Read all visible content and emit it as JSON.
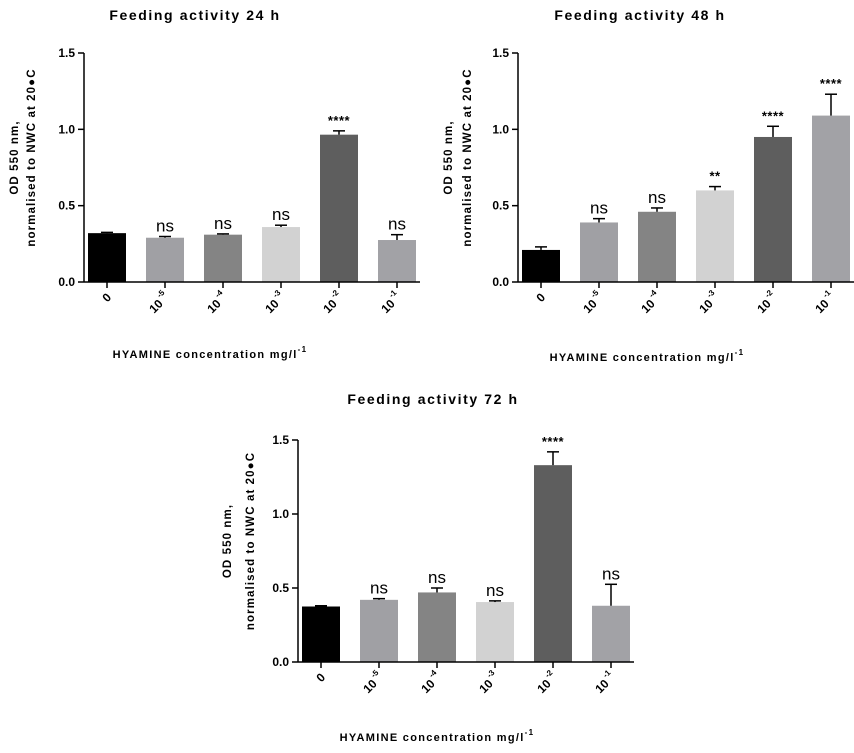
{
  "colors": {
    "bars": [
      "#000000",
      "#a0a0a4",
      "#848484",
      "#d2d2d2",
      "#5e5e5e",
      "#a2a2a6"
    ],
    "axis": "#000000"
  },
  "chart_data": [
    {
      "type": "bar",
      "title": "Feeding activity 24 h",
      "ylabel_lines": [
        "OD 550 nm,",
        "normalised to NWC at 20●C"
      ],
      "xlabel": "HYAMINE concentration mg/l",
      "xlabel_sup": "-1",
      "categories": [
        {
          "base": "0",
          "exp": ""
        },
        {
          "base": "10",
          "exp": "-5"
        },
        {
          "base": "10",
          "exp": "-4"
        },
        {
          "base": "10",
          "exp": "-3"
        },
        {
          "base": "10",
          "exp": "-2"
        },
        {
          "base": "10",
          "exp": "-1"
        }
      ],
      "values": [
        0.32,
        0.29,
        0.31,
        0.36,
        0.965,
        0.275
      ],
      "errors": [
        0.005,
        0.008,
        0.005,
        0.012,
        0.025,
        0.035
      ],
      "significance": [
        "",
        "ns",
        "ns",
        "ns",
        "****",
        "ns"
      ],
      "ylim": [
        0,
        1.5
      ],
      "yticks": [
        "0.0",
        "0.5",
        "1.0",
        "1.5"
      ]
    },
    {
      "type": "bar",
      "title": "Feeding activity 48 h",
      "ylabel_lines": [
        "OD 550 nm,",
        "normalised to NWC at 20●C"
      ],
      "xlabel": "HYAMINE concentration mg/l",
      "xlabel_sup": "-1",
      "categories": [
        {
          "base": "0",
          "exp": ""
        },
        {
          "base": "10",
          "exp": "-5"
        },
        {
          "base": "10",
          "exp": "-4"
        },
        {
          "base": "10",
          "exp": "-3"
        },
        {
          "base": "10",
          "exp": "-2"
        },
        {
          "base": "10",
          "exp": "-1"
        }
      ],
      "values": [
        0.21,
        0.39,
        0.46,
        0.6,
        0.95,
        1.09
      ],
      "errors": [
        0.02,
        0.025,
        0.025,
        0.025,
        0.07,
        0.14
      ],
      "significance": [
        "",
        "ns",
        "ns",
        "**",
        "****",
        "****"
      ],
      "ylim": [
        0,
        1.5
      ],
      "yticks": [
        "0.0",
        "0.5",
        "1.0",
        "1.5"
      ]
    },
    {
      "type": "bar",
      "title": "Feeding activity 72 h",
      "ylabel_lines": [
        "OD 550 nm,",
        "normalised to NWC at 20●C"
      ],
      "xlabel": "HYAMINE concentration mg/l",
      "xlabel_sup": "-1",
      "categories": [
        {
          "base": "0",
          "exp": ""
        },
        {
          "base": "10",
          "exp": "-5"
        },
        {
          "base": "10",
          "exp": "-4"
        },
        {
          "base": "10",
          "exp": "-3"
        },
        {
          "base": "10",
          "exp": "-2"
        },
        {
          "base": "10",
          "exp": "-1"
        }
      ],
      "values": [
        0.375,
        0.42,
        0.47,
        0.405,
        1.33,
        0.38
      ],
      "errors": [
        0.005,
        0.008,
        0.03,
        0.008,
        0.09,
        0.145
      ],
      "significance": [
        "",
        "ns",
        "ns",
        "ns",
        "****",
        "ns"
      ],
      "ylim": [
        0,
        1.5
      ],
      "yticks": [
        "0.0",
        "0.5",
        "1.0",
        "1.5"
      ]
    }
  ]
}
